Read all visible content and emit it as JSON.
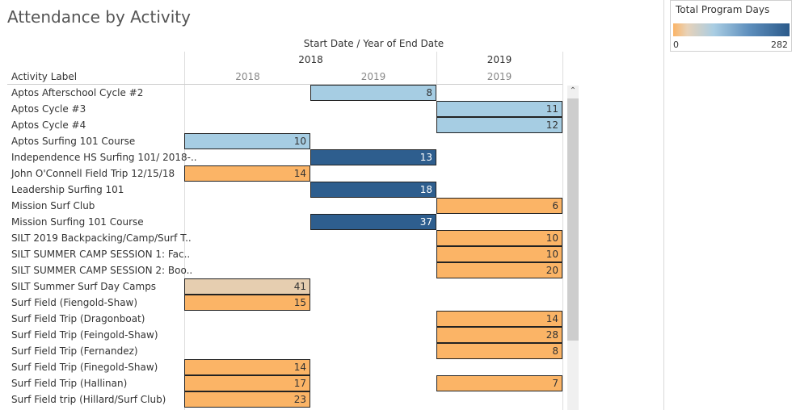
{
  "chart_data": {
    "type": "heatmap",
    "title": "Attendance by Activity",
    "column_header_title": "Start Date / Year of End Date",
    "row_header_title": "Activity Label",
    "columns": [
      {
        "start_year": "2018",
        "end_year": "2018"
      },
      {
        "start_year": "2018",
        "end_year": "2019"
      },
      {
        "start_year": "2019",
        "end_year": "2019"
      }
    ],
    "start_years": [
      "2018",
      "2019"
    ],
    "rows": [
      {
        "label": "Aptos Afterschool Cycle #2",
        "values": [
          null,
          8,
          null
        ]
      },
      {
        "label": "Aptos Cycle #3",
        "values": [
          null,
          null,
          11
        ]
      },
      {
        "label": "Aptos Cycle #4",
        "values": [
          null,
          null,
          12
        ]
      },
      {
        "label": "Aptos Surfing 101 Course",
        "values": [
          10,
          null,
          null
        ]
      },
      {
        "label": "Independence HS Surfing 101/ 2018-..",
        "values": [
          null,
          13,
          null
        ]
      },
      {
        "label": "John O'Connell Field Trip 12/15/18",
        "values": [
          14,
          null,
          null
        ]
      },
      {
        "label": "Leadership Surfing 101",
        "values": [
          null,
          18,
          null
        ]
      },
      {
        "label": "Mission Surf Club",
        "values": [
          null,
          null,
          6
        ]
      },
      {
        "label": "Mission Surfing 101 Course",
        "values": [
          null,
          37,
          null
        ]
      },
      {
        "label": "SILT 2019 Backpacking/Camp/Surf T..",
        "values": [
          null,
          null,
          10
        ]
      },
      {
        "label": "SILT SUMMER CAMP SESSION 1: Fac..",
        "values": [
          null,
          null,
          10
        ]
      },
      {
        "label": "SILT SUMMER CAMP SESSION 2: Boo..",
        "values": [
          null,
          null,
          20
        ]
      },
      {
        "label": "SILT Summer Surf Day Camps",
        "values": [
          41,
          null,
          null
        ]
      },
      {
        "label": "Surf Field (Fiengold-Shaw)",
        "values": [
          15,
          null,
          null
        ]
      },
      {
        "label": "Surf Field Trip (Dragonboat)",
        "values": [
          null,
          null,
          14
        ]
      },
      {
        "label": "Surf Field Trip (Feingold-Shaw)",
        "values": [
          null,
          null,
          28
        ]
      },
      {
        "label": "Surf Field Trip (Fernandez)",
        "values": [
          null,
          null,
          8
        ]
      },
      {
        "label": "Surf Field Trip (Finegold-Shaw)",
        "values": [
          14,
          null,
          null
        ]
      },
      {
        "label": "Surf Field Trip (Hallinan)",
        "values": [
          17,
          null,
          7
        ]
      },
      {
        "label": "Surf Field trip (Hillard/Surf Club)",
        "values": [
          23,
          null,
          null
        ]
      }
    ],
    "cell_colors": [
      [
        null,
        "#a6cde3",
        null
      ],
      [
        null,
        null,
        "#a6cde3"
      ],
      [
        null,
        null,
        "#a6cde3"
      ],
      [
        "#a6cde3",
        null,
        null
      ],
      [
        null,
        "#2e5e8e",
        null
      ],
      [
        "#fbb466",
        null,
        null
      ],
      [
        null,
        "#2e5e8e",
        null
      ],
      [
        null,
        null,
        "#fbb466"
      ],
      [
        null,
        "#2e5e8e",
        null
      ],
      [
        null,
        null,
        "#fbb466"
      ],
      [
        null,
        null,
        "#fbb466"
      ],
      [
        null,
        null,
        "#fbb466"
      ],
      [
        "#e6ceb0",
        null,
        null
      ],
      [
        "#fbb466",
        null,
        null
      ],
      [
        null,
        null,
        "#fbb466"
      ],
      [
        null,
        null,
        "#fbb466"
      ],
      [
        null,
        null,
        "#fbb466"
      ],
      [
        "#fbb466",
        null,
        null
      ],
      [
        "#fbb466",
        null,
        "#fbb466"
      ],
      [
        "#fbb466",
        null,
        null
      ]
    ],
    "dark_text_cells": "#ffffff",
    "legend": {
      "title": "Total Program Days",
      "min": "0",
      "max": "282",
      "placement": "top-right"
    }
  }
}
